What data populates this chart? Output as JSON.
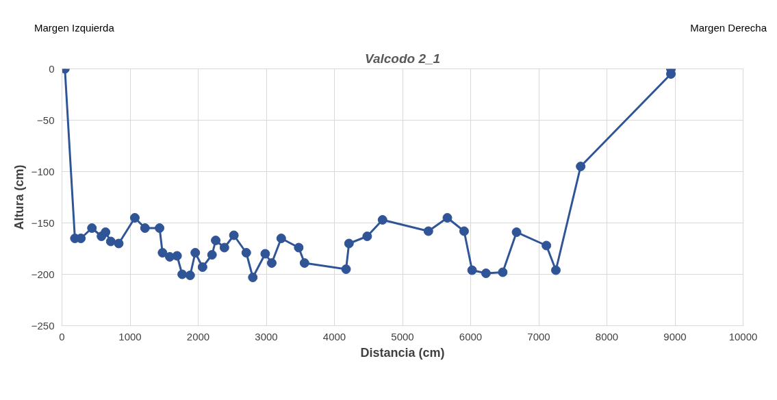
{
  "chart_data": {
    "type": "line",
    "title": "Valcodo 2_1",
    "xlabel": "Distancia (cm)",
    "ylabel": "Altura (cm)",
    "annotations": [
      "Margen Izquierda",
      "Margen Derecha"
    ],
    "xlim": [
      0,
      10000
    ],
    "xticks": [
      0,
      1000,
      2000,
      3000,
      4000,
      5000,
      6000,
      7000,
      8000,
      9000,
      10000
    ],
    "ylim": [
      -250,
      0
    ],
    "yticks": [
      -250,
      -200,
      -150,
      -100,
      -50,
      0
    ],
    "grid": true,
    "marker": "circle",
    "line_style": "solid",
    "series": [
      {
        "color": "#2f5597",
        "x": [
          43,
          190,
          278,
          440,
          580,
          640,
          717,
          834,
          1070,
          1219,
          1433,
          1476,
          1583,
          1690,
          1765,
          1882,
          1957,
          2064,
          2203,
          2257,
          2385,
          2524,
          2706,
          2802,
          2984,
          3080,
          3219,
          3476,
          3561,
          4171,
          4214,
          4481,
          4706,
          5380,
          5658,
          5904,
          6021,
          6225,
          6471,
          6674,
          7112,
          7251,
          7615,
          8940,
          8940
        ],
        "values": [
          0,
          -165,
          -165,
          -155,
          -163,
          -159,
          -168,
          -170,
          -145,
          -155,
          -155,
          -179,
          -183,
          -182,
          -200,
          -201,
          -179,
          -193,
          -181,
          -167,
          -174,
          -162,
          -179,
          -203,
          -180,
          -189,
          -165,
          -174,
          -189,
          -195,
          -170,
          -163,
          -147,
          -158,
          -145,
          -158,
          -196,
          -199,
          -198,
          -159,
          -172,
          -196,
          -95,
          -5,
          0
        ]
      }
    ]
  }
}
